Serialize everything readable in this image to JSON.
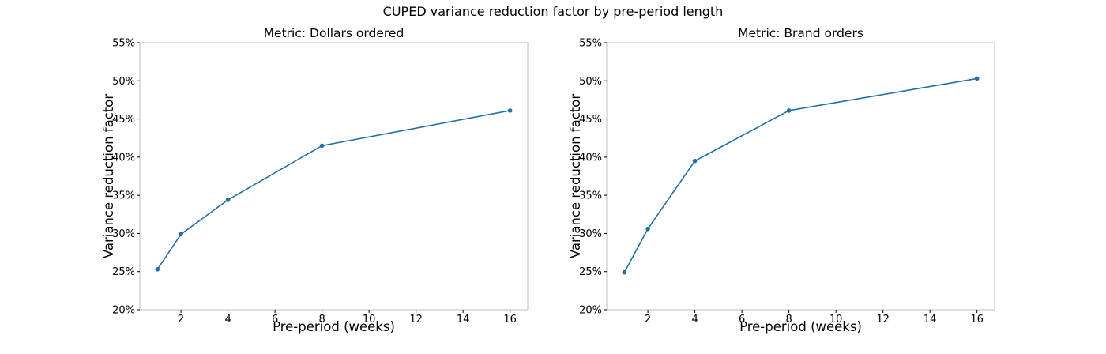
{
  "figure": {
    "title": "CUPED variance reduction factor by pre-period length",
    "line_color": "#1f6fa8",
    "frame_color": "#bdbdbd"
  },
  "chart_data": [
    {
      "type": "line",
      "title": "Metric: Dollars ordered",
      "xlabel": "Pre-period (weeks)",
      "ylabel": "Variance reduction factor",
      "xlim": [
        0.25,
        16.75
      ],
      "ylim": [
        20,
        55
      ],
      "xticks": [
        2,
        4,
        6,
        8,
        10,
        12,
        14,
        16
      ],
      "yticks": [
        20,
        25,
        30,
        35,
        40,
        45,
        50,
        55
      ],
      "ytick_labels": [
        "20%",
        "25%",
        "30%",
        "35%",
        "40%",
        "45%",
        "50%",
        "55%"
      ],
      "grid": false,
      "markers": true,
      "x": [
        1,
        2,
        4,
        8,
        16
      ],
      "y": [
        25.3,
        29.9,
        34.4,
        41.5,
        46.1
      ]
    },
    {
      "type": "line",
      "title": "Metric: Brand orders",
      "xlabel": "Pre-period (weeks)",
      "ylabel": "Variance reduction factor",
      "xlim": [
        0.25,
        16.75
      ],
      "ylim": [
        20,
        55
      ],
      "xticks": [
        2,
        4,
        6,
        8,
        10,
        12,
        14,
        16
      ],
      "yticks": [
        20,
        25,
        30,
        35,
        40,
        45,
        50,
        55
      ],
      "ytick_labels": [
        "20%",
        "25%",
        "30%",
        "35%",
        "40%",
        "45%",
        "50%",
        "55%"
      ],
      "grid": false,
      "markers": true,
      "x": [
        1,
        2,
        4,
        8,
        16
      ],
      "y": [
        24.9,
        30.6,
        39.5,
        46.1,
        50.3
      ]
    }
  ]
}
